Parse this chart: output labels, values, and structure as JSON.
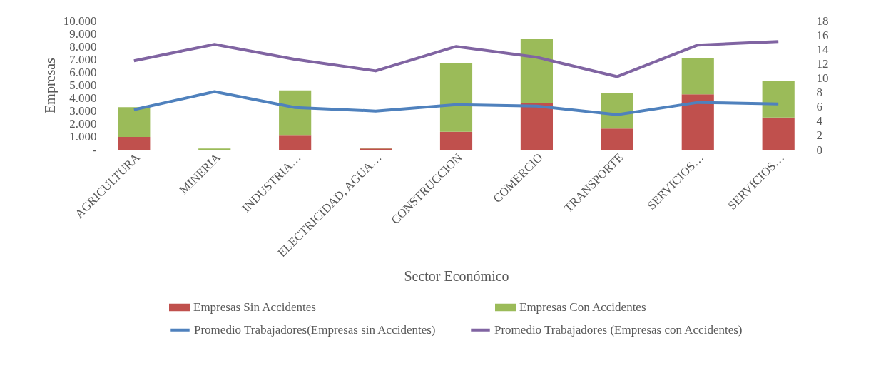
{
  "chart_data": {
    "type": "bar",
    "stacked": true,
    "xlabel": "Sector Económico",
    "ylabel": "Empresas",
    "categories": [
      "AGRICULTURA",
      "MINERIA",
      "INDUSTRIA…",
      "ELECTRICIDAD, AGUA…",
      "CONSTRUCCION",
      "COMERCIO",
      "TRANSPORTE",
      "SERVICIOS…",
      "SERVICIOS…"
    ],
    "series": [
      {
        "name": "Empresas Sin Accidentes",
        "color": "#c0504d",
        "values": [
          1000,
          null,
          1150,
          100,
          1400,
          3600,
          1650,
          4300,
          2500
        ]
      },
      {
        "name": "Empresas Con Accidentes",
        "color": "#9bbb59",
        "values": [
          2300,
          100,
          3450,
          50,
          5300,
          5000,
          2750,
          2800,
          2800
        ]
      },
      {
        "name": "Promedio Trabajadores(Empresas sin Accidentes)",
        "type": "line",
        "axis": "y2",
        "color": "#4f81bd",
        "values": [
          5.6,
          8.1,
          5.9,
          5.4,
          6.3,
          6.1,
          4.9,
          6.6,
          6.4
        ]
      },
      {
        "name": "Promedio Trabajadores (Empresas con Accidentes)",
        "type": "line",
        "axis": "y2",
        "color": "#8064a2",
        "values": [
          12.4,
          14.7,
          12.6,
          11.0,
          14.4,
          12.9,
          10.2,
          14.6,
          15.1
        ]
      }
    ],
    "ylim": [
      0,
      10000
    ],
    "yticks": [
      {
        "value": 0,
        "label": "-"
      },
      {
        "value": 1000,
        "label": "1.000"
      },
      {
        "value": 2000,
        "label": "2.000"
      },
      {
        "value": 3000,
        "label": "3.000"
      },
      {
        "value": 4000,
        "label": "4.000"
      },
      {
        "value": 5000,
        "label": "5.000"
      },
      {
        "value": 6000,
        "label": "6.000"
      },
      {
        "value": 7000,
        "label": "7.000"
      },
      {
        "value": 8000,
        "label": "8.000"
      },
      {
        "value": 9000,
        "label": "9.000"
      },
      {
        "value": 10000,
        "label": "10.000"
      }
    ],
    "y2lim": [
      0,
      18
    ],
    "y2ticks": [
      0,
      2,
      4,
      6,
      8,
      10,
      12,
      14,
      16,
      18
    ],
    "grid": false,
    "legend": "bottom",
    "line_style": "solid",
    "marker": "none"
  }
}
